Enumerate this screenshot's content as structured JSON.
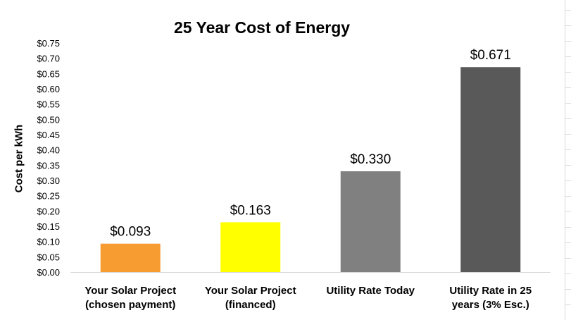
{
  "chart_data": {
    "type": "bar",
    "title": "25 Year Cost of Energy",
    "ylabel": "Cost per kWh",
    "xlabel": "",
    "categories": [
      [
        "Your Solar Project",
        "(chosen payment)"
      ],
      [
        "Your Solar Project",
        "(financed)"
      ],
      [
        "Utility Rate Today"
      ],
      [
        "Utility Rate in 25",
        "years (3% Esc.)"
      ]
    ],
    "values": [
      0.093,
      0.163,
      0.33,
      0.671
    ],
    "data_labels": [
      "$0.093",
      "$0.163",
      "$0.330",
      "$0.671"
    ],
    "colors": [
      "#f79c30",
      "#ffff00",
      "#808080",
      "#595959"
    ],
    "ylim": [
      0,
      0.75
    ],
    "ytick_step": 0.05,
    "ytick_labels": [
      "$0.00",
      "$0.05",
      "$0.10",
      "$0.15",
      "$0.20",
      "$0.25",
      "$0.30",
      "$0.35",
      "$0.40",
      "$0.45",
      "$0.50",
      "$0.55",
      "$0.60",
      "$0.65",
      "$0.70",
      "$0.75"
    ],
    "grid": false,
    "legend": "none"
  }
}
